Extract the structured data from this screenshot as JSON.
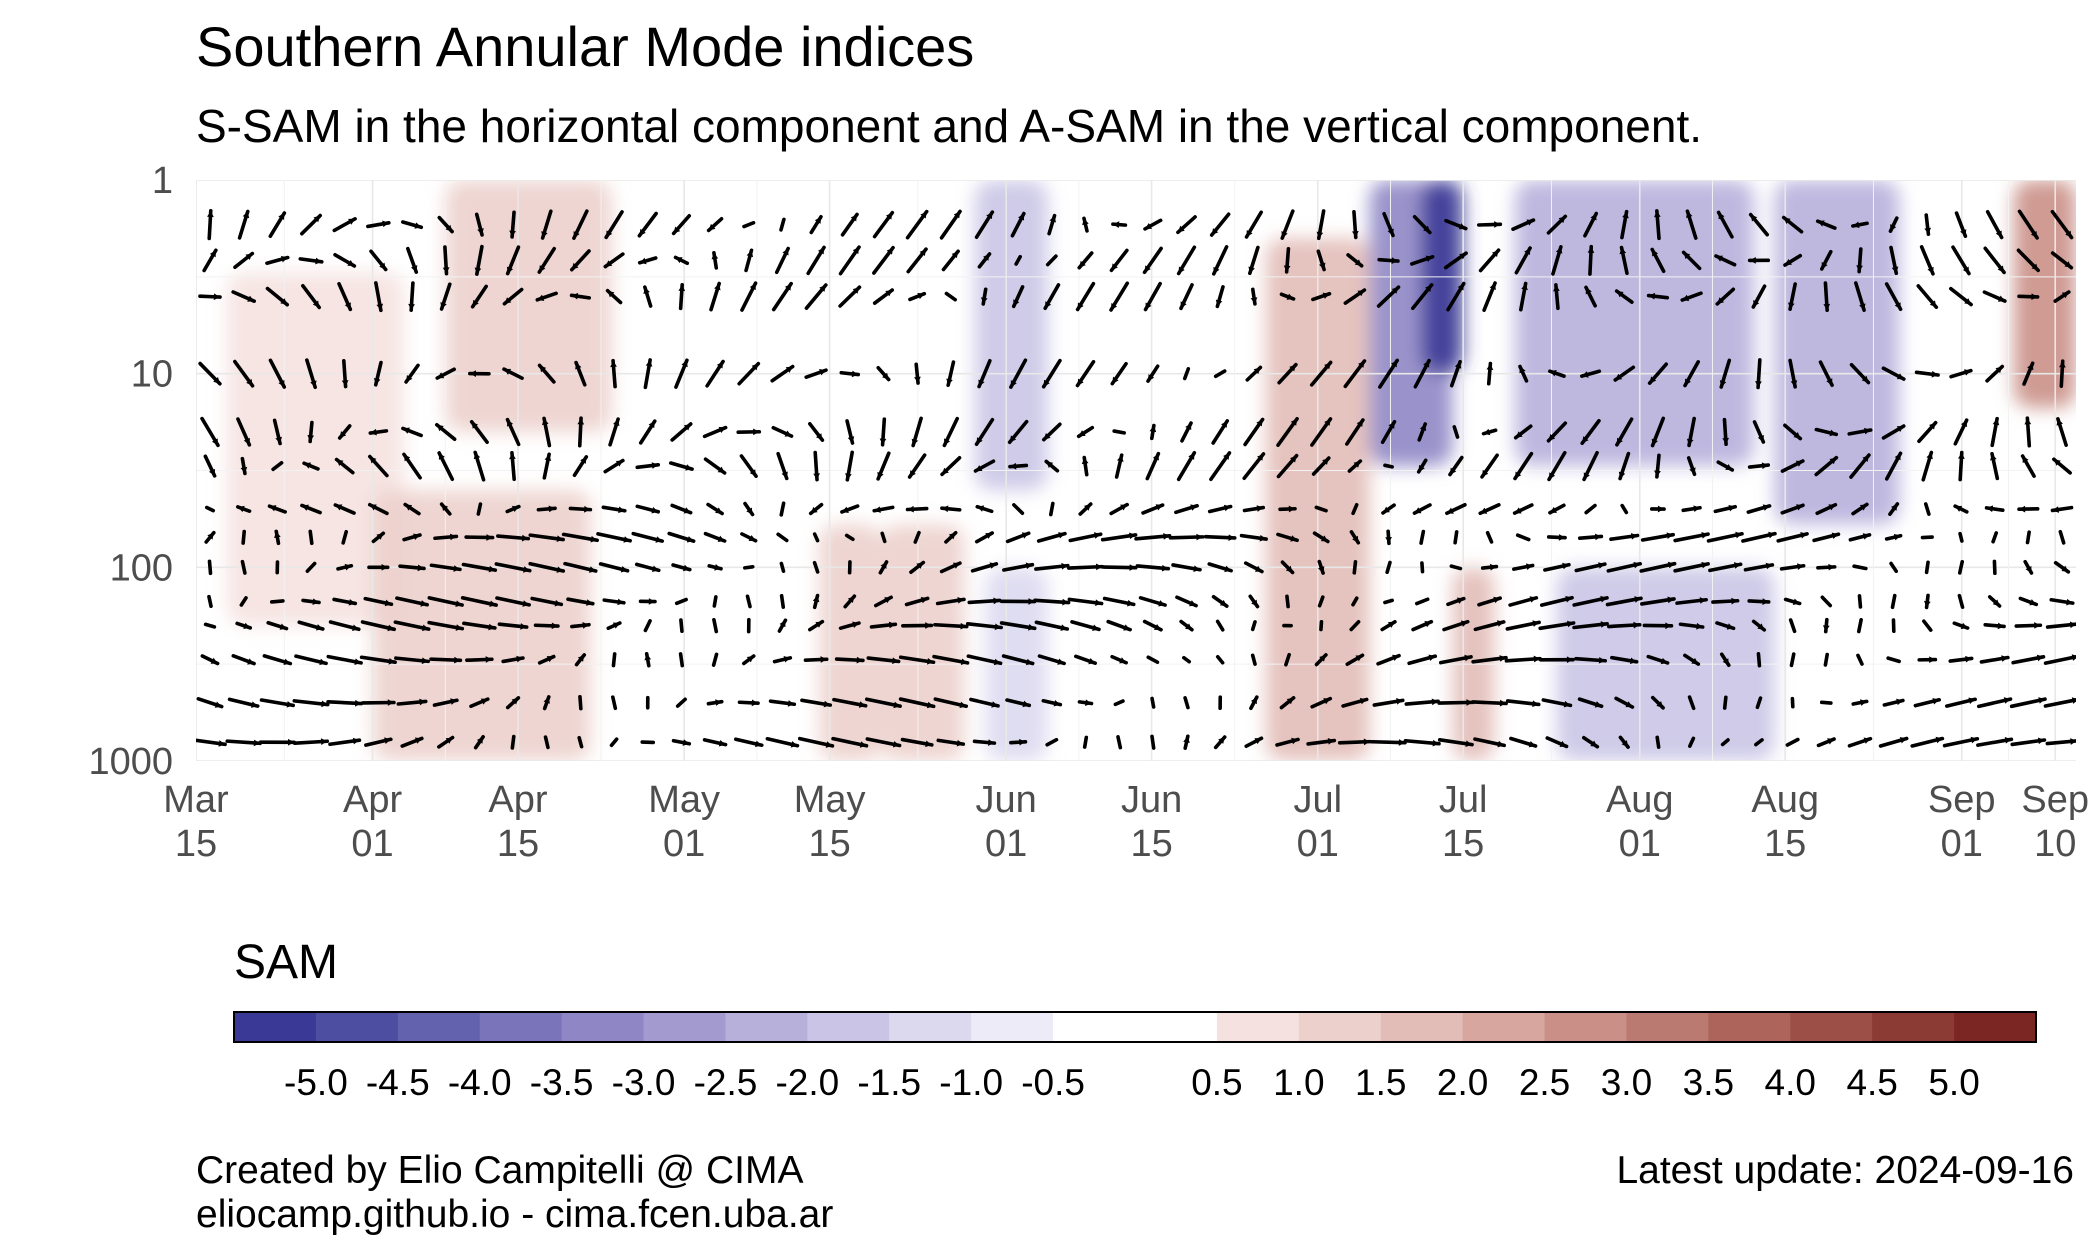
{
  "chart_data": {
    "type": "heatmap",
    "title": "Southern Annular Mode indices",
    "subtitle": "S-SAM in the horizontal component and A-SAM in the vertical component.",
    "y_axis": {
      "scale": "log",
      "reversed": true,
      "range": [
        1,
        1000
      ],
      "ticks": [
        "1",
        "10",
        "100",
        "1000"
      ]
    },
    "x_axis": {
      "range": [
        "2024-03-15",
        "2024-09-12"
      ],
      "ticks": [
        {
          "date": "2024-03-15",
          "label": [
            "Mar",
            "15"
          ]
        },
        {
          "date": "2024-04-01",
          "label": [
            "Apr",
            "01"
          ]
        },
        {
          "date": "2024-04-15",
          "label": [
            "Apr",
            "15"
          ]
        },
        {
          "date": "2024-05-01",
          "label": [
            "May",
            "01"
          ]
        },
        {
          "date": "2024-05-15",
          "label": [
            "May",
            "15"
          ]
        },
        {
          "date": "2024-06-01",
          "label": [
            "Jun",
            "01"
          ]
        },
        {
          "date": "2024-06-15",
          "label": [
            "Jun",
            "15"
          ]
        },
        {
          "date": "2024-07-01",
          "label": [
            "Jul",
            "01"
          ]
        },
        {
          "date": "2024-07-15",
          "label": [
            "Jul",
            "15"
          ]
        },
        {
          "date": "2024-08-01",
          "label": [
            "Aug",
            "01"
          ]
        },
        {
          "date": "2024-08-15",
          "label": [
            "Aug",
            "15"
          ]
        },
        {
          "date": "2024-09-01",
          "label": [
            "Sep",
            "01"
          ]
        },
        {
          "date": "2024-09-10",
          "label": [
            "Sep",
            "10"
          ]
        }
      ]
    },
    "grid": true,
    "legend": {
      "title": "SAM",
      "position": "bottom",
      "labels": [
        "-5.0",
        "-4.5",
        "-4.0",
        "-3.5",
        "-3.0",
        "-2.5",
        "-2.0",
        "-1.5",
        "-1.0",
        "-0.5",
        "0.5",
        "1.0",
        "1.5",
        "2.0",
        "2.5",
        "3.0",
        "3.5",
        "4.0",
        "4.5",
        "5.0"
      ],
      "breaks": [
        -5.5,
        -5.0,
        -4.5,
        -4.0,
        -3.5,
        -3.0,
        -2.5,
        -2.0,
        -1.5,
        -1.0,
        -0.5,
        0.5,
        1.0,
        1.5,
        2.0,
        2.5,
        3.0,
        3.5,
        4.0,
        4.5,
        5.0,
        5.5
      ],
      "colors": [
        "#3a3a96",
        "#4d4da2",
        "#6262ae",
        "#7a74ba",
        "#8f87c5",
        "#a39bd0",
        "#b7b0db",
        "#cac5e6",
        "#dcd9ef",
        "#edebf7",
        "#ffffff",
        "#f5e2e0",
        "#ecd0cc",
        "#e2bdb7",
        "#d6a69f",
        "#ca9087",
        "#bb7a71",
        "#ac645b",
        "#9c4f47",
        "#8c3a34",
        "#7c2624"
      ]
    },
    "field_series": [
      {
        "start": "2024-03-18",
        "end": "2024-04-04",
        "pressure": [
          3,
          200
        ],
        "value": 0.6
      },
      {
        "start": "2024-04-08",
        "end": "2024-04-24",
        "pressure": [
          1,
          20
        ],
        "value": 1.2
      },
      {
        "start": "2024-04-01",
        "end": "2024-04-22",
        "pressure": [
          40,
          1000
        ],
        "value": 1.4
      },
      {
        "start": "2024-05-14",
        "end": "2024-05-20",
        "pressure": [
          60,
          1000
        ],
        "value": 1.2
      },
      {
        "start": "2024-05-20",
        "end": "2024-05-28",
        "pressure": [
          60,
          1000
        ],
        "value": 1.4
      },
      {
        "start": "2024-05-29",
        "end": "2024-06-05",
        "pressure": [
          1,
          40
        ],
        "value": -1.8
      },
      {
        "start": "2024-05-30",
        "end": "2024-06-05",
        "pressure": [
          100,
          1000
        ],
        "value": -1.5
      },
      {
        "start": "2024-06-26",
        "end": "2024-07-06",
        "pressure": [
          2,
          1000
        ],
        "value": 1.6
      },
      {
        "start": "2024-07-06",
        "end": "2024-07-14",
        "pressure": [
          1,
          30
        ],
        "value": -3.5
      },
      {
        "start": "2024-07-11",
        "end": "2024-07-15",
        "pressure": [
          1,
          10
        ],
        "value": -5.5
      },
      {
        "start": "2024-07-14",
        "end": "2024-07-18",
        "pressure": [
          100,
          1000
        ],
        "value": 1.5
      },
      {
        "start": "2024-07-20",
        "end": "2024-08-12",
        "pressure": [
          1,
          30
        ],
        "value": -2.5
      },
      {
        "start": "2024-07-24",
        "end": "2024-08-14",
        "pressure": [
          100,
          1000
        ],
        "value": -2.0
      },
      {
        "start": "2024-08-14",
        "end": "2024-08-26",
        "pressure": [
          1,
          60
        ],
        "value": -2.5
      },
      {
        "start": "2024-09-06",
        "end": "2024-09-12",
        "pressure": [
          1,
          15
        ],
        "value": 2.5
      }
    ]
  },
  "caption": {
    "credit_line1": "Created by Elio Campitelli @ CIMA",
    "credit_line2": "eliocamp.github.io - cima.fcen.uba.ar",
    "update": "Latest update: 2024-09-16"
  }
}
